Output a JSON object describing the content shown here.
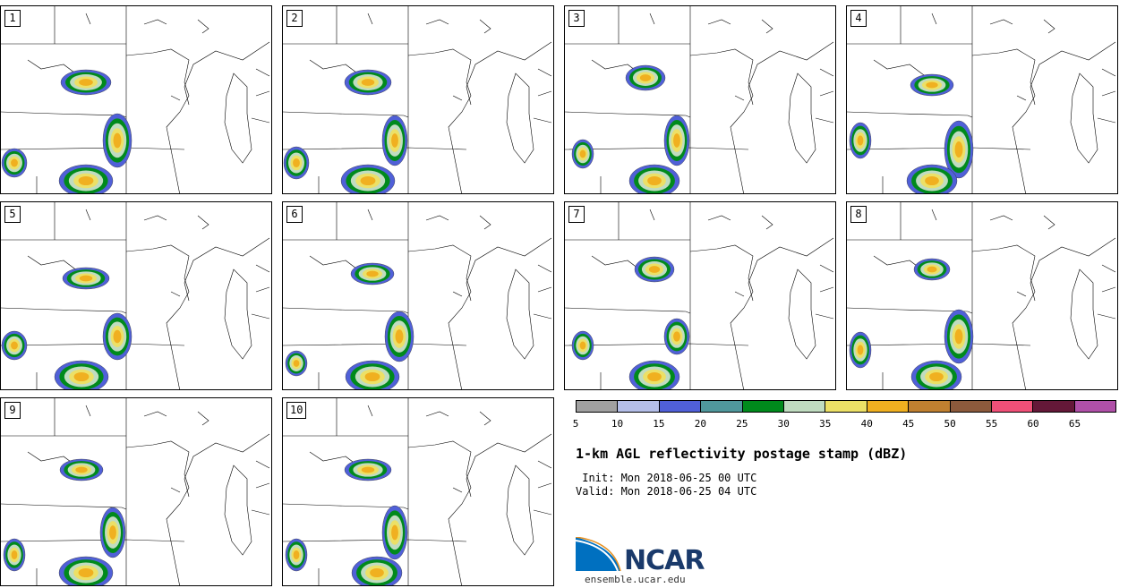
{
  "panels": [
    "1",
    "2",
    "3",
    "4",
    "5",
    "6",
    "7",
    "8",
    "9",
    "10"
  ],
  "colorbar": {
    "colors": [
      "#a0a0a0",
      "#b4bee8",
      "#5060d8",
      "#50989c",
      "#008a1c",
      "#c0dcc0",
      "#ece066",
      "#f0b020",
      "#c08030",
      "#8c5a3c",
      "#f05078",
      "#641838",
      "#b050a8"
    ],
    "ticks": [
      "5",
      "10",
      "15",
      "20",
      "25",
      "30",
      "35",
      "40",
      "45",
      "50",
      "55",
      "60",
      "65"
    ]
  },
  "title": "1-km AGL reflectivity postage stamp (dBZ)",
  "init": " Init: Mon 2018-06-25 00 UTC",
  "valid": "Valid: Mon 2018-06-25 04 UTC",
  "logo": {
    "text": "NCAR",
    "url": "ensemble.ucar.edu"
  }
}
